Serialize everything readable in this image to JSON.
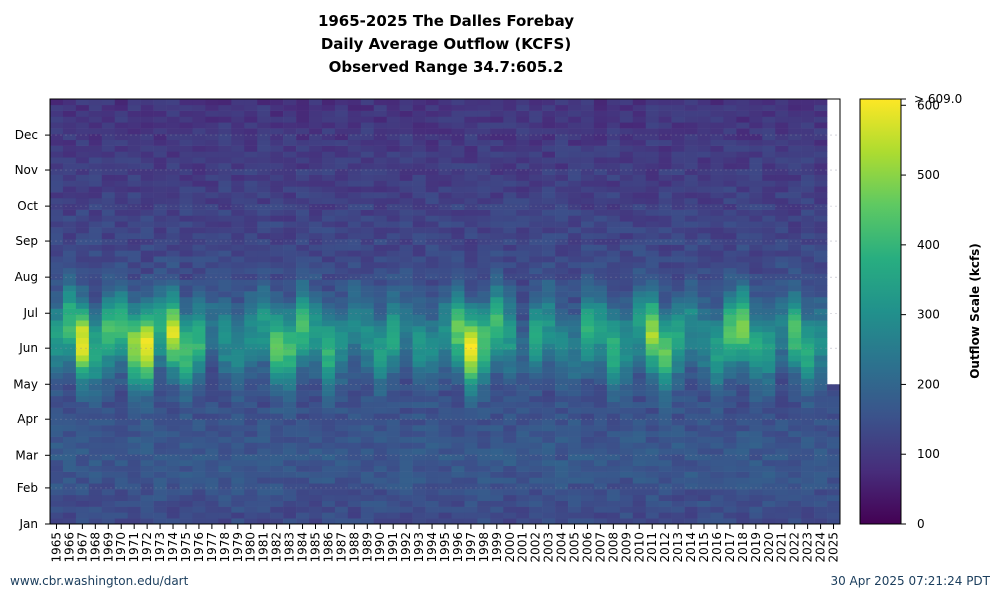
{
  "chart_data": {
    "type": "heatmap",
    "title": "1965-2025 The Dalles Forebay",
    "subtitle": "Daily Average Outflow (KCFS)",
    "range_note": "Observed Range 34.7:605.2",
    "x_categories": [
      "1965",
      "1966",
      "1967",
      "1968",
      "1969",
      "1970",
      "1971",
      "1972",
      "1973",
      "1974",
      "1975",
      "1976",
      "1977",
      "1978",
      "1979",
      "1980",
      "1981",
      "1982",
      "1983",
      "1984",
      "1985",
      "1986",
      "1987",
      "1988",
      "1989",
      "1990",
      "1991",
      "1992",
      "1993",
      "1994",
      "1995",
      "1996",
      "1997",
      "1998",
      "1999",
      "2000",
      "2001",
      "2002",
      "2003",
      "2004",
      "2005",
      "2006",
      "2007",
      "2008",
      "2009",
      "2010",
      "2011",
      "2012",
      "2013",
      "2014",
      "2015",
      "2016",
      "2017",
      "2018",
      "2019",
      "2020",
      "2021",
      "2022",
      "2023",
      "2024",
      "2025"
    ],
    "y_month_labels": [
      "Jan",
      "Feb",
      "Mar",
      "Apr",
      "May",
      "Jun",
      "Jul",
      "Aug",
      "Sep",
      "Oct",
      "Nov",
      "Dec"
    ],
    "colorbar": {
      "label": "Outflow Scale (kcfs)",
      "ticks": [
        0,
        100,
        200,
        300,
        400,
        500,
        600
      ],
      "min": 0,
      "max": 609.0,
      "max_label": "> 609.0",
      "colormap": "viridis"
    },
    "annual_peak_kcfs": [
      330,
      420,
      590,
      360,
      420,
      400,
      520,
      600,
      380,
      560,
      420,
      400,
      230,
      300,
      280,
      300,
      330,
      450,
      420,
      420,
      330,
      400,
      300,
      280,
      300,
      330,
      360,
      250,
      310,
      280,
      300,
      460,
      590,
      440,
      420,
      330,
      200,
      370,
      310,
      280,
      250,
      380,
      330,
      400,
      310,
      330,
      520,
      450,
      360,
      300,
      280,
      340,
      440,
      470,
      360,
      330,
      270,
      430,
      380,
      290,
      240
    ],
    "last_observed_day_2025": 120,
    "grid": true
  },
  "footer": {
    "source": "www.cbr.washington.edu/dart",
    "timestamp": "30 Apr 2025 07:21:24 PDT"
  }
}
